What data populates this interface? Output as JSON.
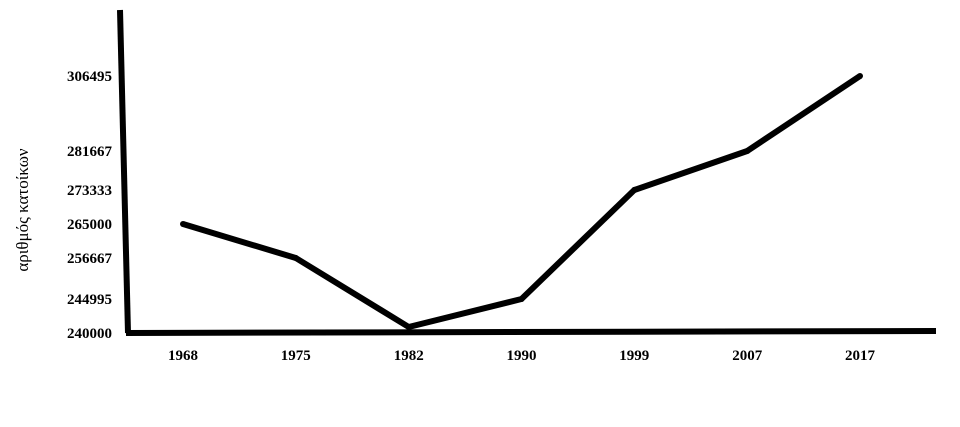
{
  "chart_data": {
    "type": "line",
    "title": "",
    "xlabel": "",
    "ylabel": "αριθμός κατοίκων",
    "categories": [
      "1968",
      "1975",
      "1982",
      "1990",
      "1999",
      "2007",
      "2017"
    ],
    "values": [
      265000,
      256667,
      240000,
      244995,
      273333,
      281667,
      306495
    ],
    "y_ticks": [
      "306495",
      "281667",
      "273333",
      "265000",
      "256667",
      "244995",
      "240000"
    ],
    "grid": false,
    "legend": "none",
    "colors": {
      "line": "#000000",
      "axis": "#000000",
      "background": "#ffffff"
    }
  }
}
